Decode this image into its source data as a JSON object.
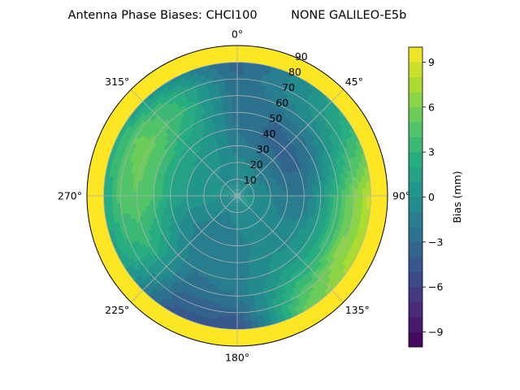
{
  "chart_data": {
    "type": "heatmap",
    "projection": "polar",
    "title": "Antenna Phase Biases: CHCI100         NONE GALILEO-E5b",
    "theta_direction": "clockwise",
    "theta_zero_location": "top",
    "theta_ticks": [
      "0°",
      "45°",
      "90°",
      "135°",
      "180°",
      "225°",
      "270°",
      "315°"
    ],
    "r_ticks": [
      "10",
      "20",
      "30",
      "40",
      "50",
      "60",
      "70",
      "80",
      "90"
    ],
    "r_range": [
      0,
      90
    ],
    "grid": true,
    "colormap": "viridis",
    "colorbar": {
      "label": "Bias (mm)",
      "range": [
        -10,
        10
      ],
      "levels": 20,
      "ticks": [
        "−9",
        "−6",
        "−3",
        "0",
        "3",
        "6",
        "9"
      ]
    },
    "zenith_bins": [
      0,
      10,
      20,
      30,
      40,
      50,
      60,
      70,
      80,
      90
    ],
    "azimuth_bins_deg": [
      0,
      30,
      60,
      90,
      120,
      150,
      180,
      210,
      240,
      270,
      300,
      330
    ],
    "values": [
      [
        -1.0,
        -0.5,
        -0.8,
        -1.5,
        -2.0,
        -2.5,
        -2.8,
        -3.0,
        -3.5
      ],
      [
        -0.5,
        -0.5,
        -1.0,
        -2.5,
        -3.5,
        -3.0,
        -1.5,
        -0.5,
        -0.5
      ],
      [
        -0.5,
        -0.5,
        -1.5,
        -3.0,
        -3.5,
        -2.0,
        0.0,
        2.0,
        3.0
      ],
      [
        0.0,
        0.0,
        -1.0,
        -2.0,
        -2.0,
        0.5,
        3.5,
        6.0,
        8.5
      ],
      [
        0.0,
        0.0,
        -0.5,
        -1.0,
        -0.5,
        1.0,
        3.5,
        6.5,
        7.5
      ],
      [
        0.0,
        0.0,
        0.0,
        -0.5,
        0.0,
        0.5,
        2.0,
        4.0,
        5.0
      ],
      [
        -0.5,
        -0.5,
        -1.0,
        -1.5,
        -1.5,
        -1.5,
        -2.0,
        -3.5,
        -5.0
      ],
      [
        -0.5,
        -1.0,
        -1.5,
        -2.0,
        -2.0,
        -2.0,
        -2.5,
        -3.5,
        -4.5
      ],
      [
        -0.5,
        -0.5,
        -0.5,
        -1.0,
        0.0,
        1.5,
        3.0,
        2.5,
        1.5
      ],
      [
        0.0,
        0.0,
        0.5,
        1.0,
        2.0,
        4.0,
        5.0,
        4.5,
        2.0
      ],
      [
        0.0,
        0.0,
        0.5,
        1.0,
        2.0,
        4.0,
        5.5,
        5.0,
        2.0
      ],
      [
        -0.5,
        -0.5,
        0.0,
        0.5,
        1.0,
        2.0,
        3.0,
        2.5,
        -0.5
      ]
    ]
  }
}
